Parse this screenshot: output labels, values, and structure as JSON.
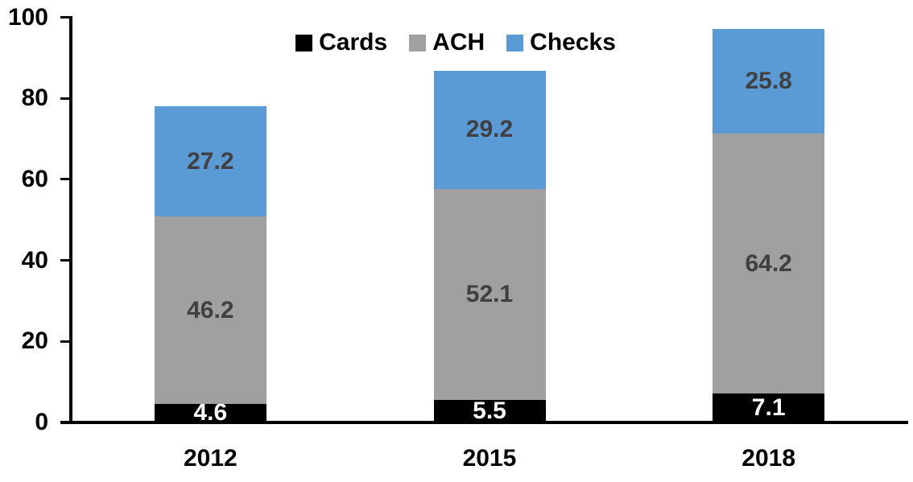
{
  "chart_data": {
    "type": "bar",
    "stacked": true,
    "categories": [
      "2012",
      "2015",
      "2018"
    ],
    "series": [
      {
        "name": "Cards",
        "color": "#000000",
        "label_color": "#FFFFFF",
        "values": [
          4.6,
          5.5,
          7.1
        ]
      },
      {
        "name": "ACH",
        "color": "#A0A0A0",
        "label_color": "#404040",
        "values": [
          46.2,
          52.1,
          64.2
        ]
      },
      {
        "name": "Checks",
        "color": "#5B9BD5",
        "label_color": "#404040",
        "values": [
          27.2,
          29.2,
          25.8
        ]
      }
    ],
    "ylim": [
      0,
      100
    ],
    "yticks": [
      0,
      20,
      40,
      60,
      80,
      100
    ],
    "grid": false,
    "legend": {
      "position": "top",
      "entries": [
        "Cards",
        "ACH",
        "Checks"
      ]
    },
    "axis_color": "#000000",
    "background": "#FFFFFF",
    "value_label_format": "0.1f"
  }
}
